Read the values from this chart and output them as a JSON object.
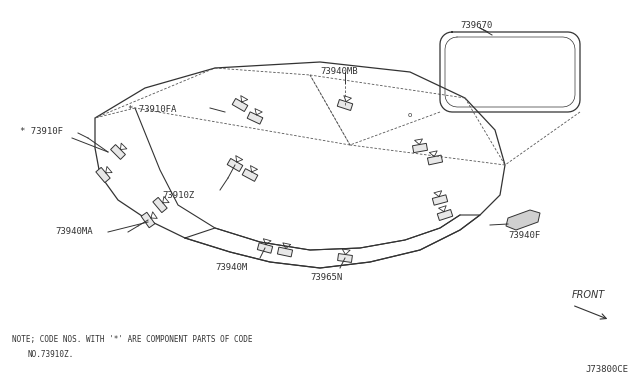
{
  "bg_color": "#ffffff",
  "fig_width": 6.4,
  "fig_height": 3.72,
  "dpi": 100,
  "note_line1": "NOTE; CODE NOS. WITH ’*’ ARE COMPONENT PARTS OF CODE",
  "note_line2": "     NO.73910Z.",
  "code_text": "J73800CE",
  "front_text": "FRONT",
  "line_color": "#333333",
  "dashed_color": "#555555"
}
